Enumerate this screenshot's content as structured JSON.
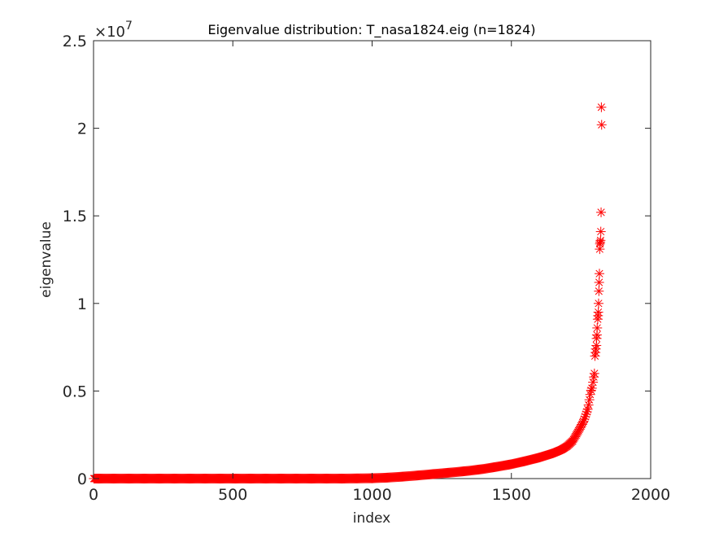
{
  "chart_data": {
    "type": "scatter",
    "title": "Eigenvalue distribution: T_nasa1824.eig (n=1824)",
    "xlabel": "index",
    "ylabel": "eigenvalue",
    "xlim": [
      0,
      2000
    ],
    "ylim": [
      0,
      2.5
    ],
    "y_multiplier": "×10",
    "y_exponent": "7",
    "xticks": [
      0,
      500,
      1000,
      1500,
      2000
    ],
    "xtick_labels": [
      "0",
      "500",
      "1000",
      "1500",
      "2000"
    ],
    "yticks": [
      0,
      0.5,
      1,
      1.5,
      2,
      2.5
    ],
    "ytick_labels": [
      "0",
      "0.5",
      "1",
      "1.5",
      "2",
      "2.5"
    ],
    "marker": "asterisk",
    "marker_color": "#ff0000",
    "grid": false,
    "series": [
      {
        "n": 1824,
        "curve_points": [
          [
            1,
            0.0
          ],
          [
            100,
            0.0
          ],
          [
            300,
            0.0
          ],
          [
            500,
            0.0
          ],
          [
            700,
            0.0
          ],
          [
            900,
            0.0
          ],
          [
            1000,
            0.002
          ],
          [
            1050,
            0.005
          ],
          [
            1100,
            0.01
          ],
          [
            1150,
            0.016
          ],
          [
            1200,
            0.023
          ],
          [
            1250,
            0.03
          ],
          [
            1300,
            0.037
          ],
          [
            1350,
            0.045
          ],
          [
            1400,
            0.055
          ],
          [
            1450,
            0.068
          ],
          [
            1500,
            0.082
          ],
          [
            1550,
            0.1
          ],
          [
            1600,
            0.12
          ],
          [
            1650,
            0.145
          ],
          [
            1680,
            0.165
          ],
          [
            1700,
            0.185
          ],
          [
            1720,
            0.215
          ],
          [
            1740,
            0.27
          ],
          [
            1760,
            0.33
          ],
          [
            1775,
            0.4
          ],
          [
            1785,
            0.5
          ],
          [
            1790,
            0.52
          ],
          [
            1795,
            0.57
          ],
          [
            1800,
            0.6
          ],
          [
            1805,
            0.68
          ],
          [
            1808,
            0.72
          ],
          [
            1812,
            0.8
          ],
          [
            1815,
            0.9
          ],
          [
            1818,
            1.0
          ],
          [
            1820,
            1.12
          ],
          [
            1821,
            1.3
          ],
          [
            1822,
            1.4
          ],
          [
            1823,
            2.02
          ],
          [
            1824,
            2.12
          ]
        ],
        "outliers": [
          [
            1823,
            2.12
          ],
          [
            1824,
            2.02
          ],
          [
            1822,
            1.52
          ],
          [
            1821,
            1.41
          ],
          [
            1820,
            1.36
          ],
          [
            1819,
            1.35
          ],
          [
            1818,
            1.34
          ],
          [
            1817,
            1.31
          ],
          [
            1816,
            1.17
          ],
          [
            1815,
            1.12
          ],
          [
            1814,
            1.07
          ],
          [
            1813,
            1.0
          ],
          [
            1812,
            0.95
          ],
          [
            1811,
            0.93
          ],
          [
            1810,
            0.91
          ],
          [
            1808,
            0.86
          ],
          [
            1807,
            0.82
          ],
          [
            1806,
            0.8
          ],
          [
            1805,
            0.76
          ],
          [
            1803,
            0.74
          ],
          [
            1802,
            0.72
          ],
          [
            1800,
            0.7
          ],
          [
            1798,
            0.6
          ],
          [
            1796,
            0.58
          ],
          [
            1793,
            0.55
          ]
        ]
      }
    ]
  }
}
